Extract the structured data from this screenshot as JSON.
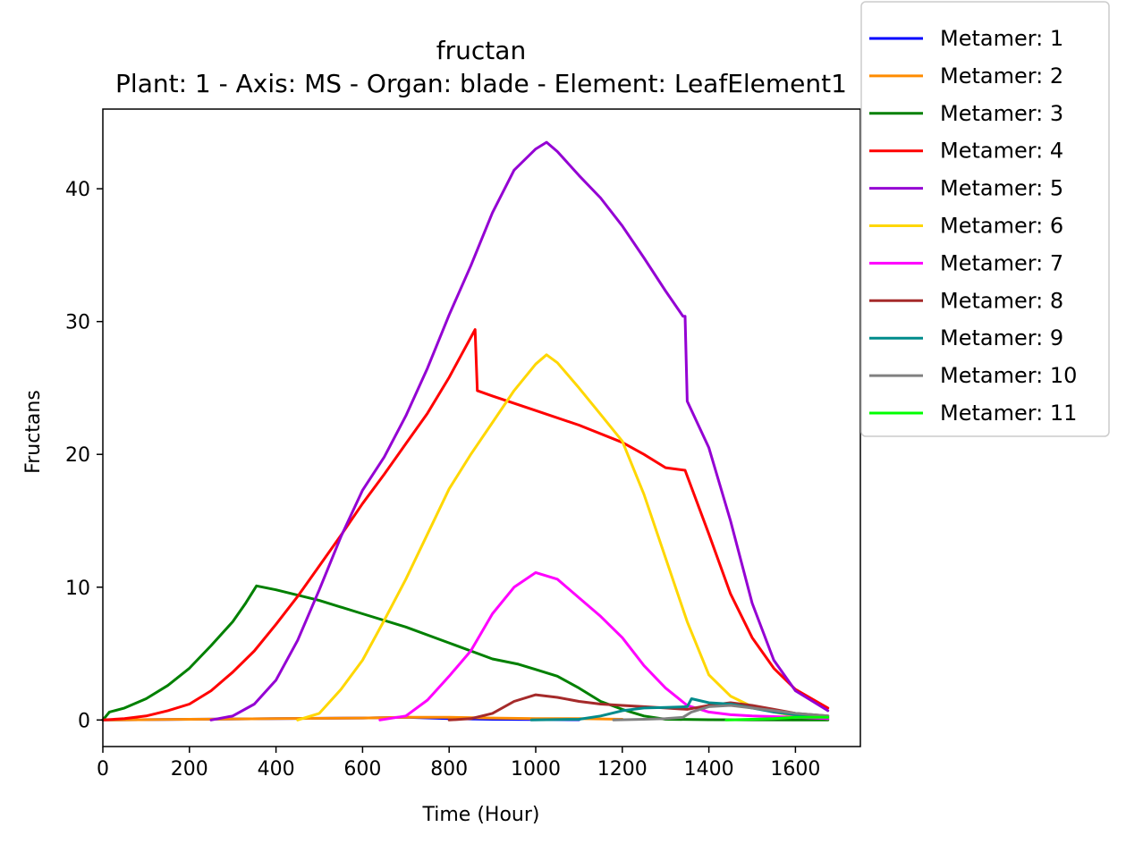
{
  "chart_data": {
    "type": "line",
    "title": "fructan",
    "subtitle": "Plant: 1 - Axis: MS - Organ: blade - Element: LeafElement1",
    "xlabel": "Time (Hour)",
    "ylabel": "Fructans",
    "xlim": [
      0,
      1750
    ],
    "ylim": [
      -2,
      46
    ],
    "xticks": [
      0,
      200,
      400,
      600,
      800,
      1000,
      1200,
      1400,
      1600
    ],
    "yticks": [
      0,
      10,
      20,
      30,
      40
    ],
    "grid": false,
    "legend_position": "upper-right-outside",
    "series": [
      {
        "name": "Metamer: 1",
        "color": "#0000ff",
        "x": [
          0,
          200,
          400,
          600,
          700,
          800,
          900,
          1000,
          1100
        ],
        "y": [
          0,
          0.05,
          0.1,
          0.15,
          0.2,
          0.1,
          0.05,
          0.03,
          0.02
        ]
      },
      {
        "name": "Metamer: 2",
        "color": "#ff8c00",
        "x": [
          0,
          200,
          400,
          600,
          700,
          800,
          900,
          1000,
          1100,
          1200
        ],
        "y": [
          0,
          0.05,
          0.1,
          0.15,
          0.2,
          0.2,
          0.15,
          0.1,
          0.1,
          0.05
        ]
      },
      {
        "name": "Metamer: 3",
        "color": "#008000",
        "x": [
          0,
          15,
          50,
          100,
          150,
          200,
          250,
          300,
          330,
          355,
          400,
          500,
          600,
          700,
          800,
          900,
          960,
          1000,
          1050,
          1100,
          1150,
          1200,
          1250,
          1300,
          1400,
          1500,
          1600,
          1675
        ],
        "y": [
          0,
          0.6,
          0.9,
          1.6,
          2.6,
          3.9,
          5.6,
          7.4,
          8.8,
          10.1,
          9.8,
          9.0,
          8.0,
          7.0,
          5.8,
          4.6,
          4.2,
          3.8,
          3.3,
          2.4,
          1.4,
          0.8,
          0.3,
          0.05,
          0.02,
          0.01,
          0,
          0
        ]
      },
      {
        "name": "Metamer: 4",
        "color": "#ff0000",
        "x": [
          0,
          50,
          100,
          150,
          200,
          250,
          300,
          350,
          400,
          450,
          500,
          550,
          600,
          650,
          700,
          750,
          800,
          830,
          860,
          865,
          900,
          1000,
          1100,
          1200,
          1250,
          1300,
          1345,
          1400,
          1450,
          1500,
          1550,
          1600,
          1675
        ],
        "y": [
          0,
          0.1,
          0.3,
          0.7,
          1.2,
          2.2,
          3.6,
          5.2,
          7.2,
          9.3,
          11.6,
          13.9,
          16.3,
          18.5,
          20.8,
          23.1,
          25.8,
          27.6,
          29.4,
          24.8,
          24.4,
          23.3,
          22.2,
          20.9,
          20.0,
          19.0,
          18.8,
          14.0,
          9.5,
          6.2,
          3.9,
          2.3,
          0.9
        ]
      },
      {
        "name": "Metamer: 5",
        "color": "#9400d3",
        "x": [
          250,
          300,
          350,
          400,
          450,
          500,
          550,
          600,
          650,
          700,
          750,
          800,
          850,
          900,
          950,
          1000,
          1025,
          1050,
          1100,
          1150,
          1200,
          1250,
          1300,
          1340,
          1345,
          1350,
          1400,
          1450,
          1500,
          1550,
          1600,
          1675
        ],
        "y": [
          0,
          0.3,
          1.2,
          3.0,
          6.0,
          9.8,
          13.8,
          17.3,
          19.8,
          22.9,
          26.5,
          30.5,
          34.2,
          38.2,
          41.4,
          43.0,
          43.5,
          42.8,
          41.0,
          39.3,
          37.2,
          34.8,
          32.3,
          30.4,
          30.4,
          24.0,
          20.5,
          15.0,
          8.8,
          4.5,
          2.2,
          0.7
        ]
      },
      {
        "name": "Metamer: 6",
        "color": "#ffd700",
        "x": [
          450,
          500,
          550,
          600,
          650,
          700,
          750,
          800,
          850,
          900,
          950,
          1000,
          1025,
          1050,
          1100,
          1150,
          1200,
          1250,
          1300,
          1350,
          1400,
          1450,
          1500,
          1550,
          1600,
          1675
        ],
        "y": [
          0,
          0.5,
          2.3,
          4.5,
          7.5,
          10.6,
          14.0,
          17.4,
          20.0,
          22.4,
          24.8,
          26.8,
          27.5,
          26.9,
          25.0,
          23.0,
          21.0,
          17.0,
          12.2,
          7.4,
          3.4,
          1.8,
          1.0,
          0.6,
          0.3,
          0.1
        ]
      },
      {
        "name": "Metamer: 7",
        "color": "#ff00ff",
        "x": [
          640,
          700,
          750,
          800,
          850,
          900,
          950,
          1000,
          1050,
          1100,
          1150,
          1200,
          1250,
          1300,
          1350,
          1400,
          1450,
          1500,
          1600,
          1675
        ],
        "y": [
          0,
          0.3,
          1.5,
          3.3,
          5.2,
          8.0,
          10.0,
          11.1,
          10.6,
          9.2,
          7.8,
          6.2,
          4.1,
          2.4,
          1.1,
          0.6,
          0.4,
          0.3,
          0.2,
          0.1
        ]
      },
      {
        "name": "Metamer: 8",
        "color": "#a52a2a",
        "x": [
          800,
          850,
          900,
          950,
          1000,
          1050,
          1100,
          1150,
          1200,
          1250,
          1300,
          1350,
          1400,
          1450,
          1500,
          1550,
          1600,
          1675
        ],
        "y": [
          0,
          0.1,
          0.5,
          1.4,
          1.9,
          1.7,
          1.4,
          1.2,
          1.1,
          1.0,
          0.9,
          0.8,
          1.1,
          1.3,
          1.1,
          0.8,
          0.5,
          0.3
        ]
      },
      {
        "name": "Metamer: 9",
        "color": "#008b8b",
        "x": [
          990,
          1100,
          1150,
          1200,
          1250,
          1300,
          1350,
          1360,
          1400,
          1450,
          1500,
          1550,
          1600,
          1675
        ],
        "y": [
          0,
          0.05,
          0.3,
          0.7,
          0.9,
          0.95,
          1.0,
          1.6,
          1.3,
          1.2,
          0.9,
          0.6,
          0.4,
          0.2
        ]
      },
      {
        "name": "Metamer: 10",
        "color": "#808080",
        "x": [
          1180,
          1250,
          1300,
          1340,
          1360,
          1400,
          1450,
          1500,
          1550,
          1600,
          1675
        ],
        "y": [
          0,
          0.05,
          0.1,
          0.2,
          0.6,
          1.0,
          1.1,
          0.9,
          0.7,
          0.5,
          0.3
        ]
      },
      {
        "name": "Metamer: 11",
        "color": "#00ff00",
        "x": [
          1440,
          1500,
          1550,
          1600,
          1675
        ],
        "y": [
          0,
          0.05,
          0.1,
          0.2,
          0.2
        ]
      }
    ]
  }
}
